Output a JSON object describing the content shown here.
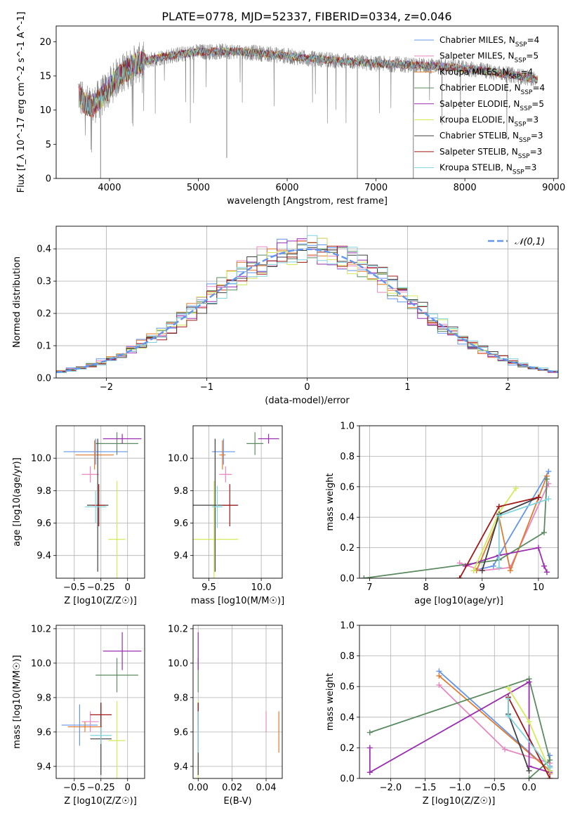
{
  "figure_title": "PLATE=0778, MJD=52337, FIBERID=0334, z=0.046",
  "models": [
    {
      "name": "Chabrier MILES",
      "n": "4",
      "color": "#6495ED"
    },
    {
      "name": "Salpeter MILES",
      "n": "5",
      "color": "#E887C0"
    },
    {
      "name": "Kroupa MILES",
      "n": "4",
      "color": "#E07B30"
    },
    {
      "name": "Chabrier ELODIE",
      "n": "4",
      "color": "#5B8A60"
    },
    {
      "name": "Salpeter ELODIE",
      "n": "5",
      "color": "#9A2DB0"
    },
    {
      "name": "Kroupa ELODIE",
      "n": "3",
      "color": "#D4EA5A"
    },
    {
      "name": "Chabrier STELIB",
      "n": "3",
      "color": "#404040"
    },
    {
      "name": "Salpeter STELIB",
      "n": "3",
      "color": "#A01818"
    },
    {
      "name": "Kroupa STELIB",
      "n": "3",
      "color": "#80D4DE"
    }
  ],
  "chart_data": [
    {
      "id": "spectrum",
      "type": "line",
      "xlabel": "wavelength [Angstrom, rest frame]",
      "ylabel": "Flux [f_λ 10^-17 erg cm^-2 s^-1 A^-1]",
      "xlim": [
        3400,
        9050
      ],
      "ylim": [
        0,
        22.3
      ],
      "xticks": [
        4000,
        5000,
        6000,
        7000,
        8000,
        9000
      ],
      "yticks": [
        0,
        5,
        10,
        15,
        20
      ],
      "legend": "top-right",
      "continuum": {
        "x": [
          3650,
          3700,
          3800,
          3950,
          4100,
          4300,
          4600,
          5000,
          5400,
          5800,
          6200,
          6600,
          7000,
          7400,
          7800,
          8200,
          8600,
          8800
        ],
        "y": [
          12.5,
          11.2,
          10.5,
          12.5,
          15.0,
          16.8,
          17.8,
          18.5,
          18.6,
          18.2,
          17.6,
          17.2,
          16.8,
          16.6,
          16.3,
          15.8,
          15.0,
          14.5
        ]
      },
      "dropouts": [
        {
          "x": 3900,
          "y": 0
        },
        {
          "x": 6790,
          "y": 0
        },
        {
          "x": 7420,
          "y": 0
        },
        {
          "x": 5320,
          "y": 3
        }
      ]
    },
    {
      "id": "residuals",
      "type": "line",
      "xlabel": "(data-model)/error",
      "ylabel": "Normed distribution",
      "xlim": [
        -2.5,
        2.5
      ],
      "ylim": [
        0,
        0.47
      ],
      "xticks": [
        -2,
        -1,
        0,
        1,
        2
      ],
      "yticks": [
        0.0,
        0.1,
        0.2,
        0.3,
        0.4
      ],
      "reference_curve": {
        "name": "𝒩(0,1)",
        "mu": 0,
        "sigma": 1,
        "style": "dashed",
        "color": "#6495ED"
      },
      "legend": "top-right"
    },
    {
      "id": "age-vs-Z",
      "type": "scatter",
      "xlabel": "Z [log10(Z/Z☉)]",
      "ylabel": "age  [log10(age/yr)]",
      "xlim": [
        -0.67,
        0.16
      ],
      "ylim": [
        9.26,
        10.2
      ],
      "xticks": [
        -0.5,
        -0.25,
        0.0
      ],
      "yticks": [
        9.4,
        9.6,
        9.8,
        10.0
      ],
      "points": [
        {
          "x": -0.3,
          "y": 10.04,
          "xerr": 0.3,
          "yerr": 0.08
        },
        {
          "x": -0.35,
          "y": 9.9,
          "xerr": 0.08,
          "yerr": 0.05
        },
        {
          "x": -0.31,
          "y": 10.02,
          "xerr": 0.18,
          "yerr": 0.09
        },
        {
          "x": -0.1,
          "y": 10.09,
          "xerr": 0.2,
          "yerr": 0.07
        },
        {
          "x": -0.05,
          "y": 10.12,
          "xerr": 0.18,
          "yerr": 0.03
        },
        {
          "x": -0.1,
          "y": 9.5,
          "xerr": 0.08,
          "yerr": 0.36
        },
        {
          "x": -0.28,
          "y": 9.71,
          "xerr": 0.1,
          "yerr": 0.41
        },
        {
          "x": -0.27,
          "y": 9.71,
          "xerr": 0.06,
          "yerr": 0.13
        },
        {
          "x": -0.3,
          "y": 9.7,
          "xerr": 0.1,
          "yerr": 0.1
        }
      ]
    },
    {
      "id": "age-vs-mass",
      "type": "scatter",
      "xlabel": "mass [log10(M/M☉)]",
      "ylabel": "",
      "xlim": [
        9.35,
        10.2
      ],
      "ylim": [
        9.26,
        10.2
      ],
      "xticks": [
        9.5,
        10.0
      ],
      "yticks": [
        9.4,
        9.6,
        9.8,
        10.0
      ],
      "points": [
        {
          "x": 9.64,
          "y": 10.04,
          "xerr": 0.11,
          "yerr": 0.08
        },
        {
          "x": 9.66,
          "y": 9.9,
          "xerr": 0.06,
          "yerr": 0.05
        },
        {
          "x": 9.63,
          "y": 10.02,
          "xerr": 0.03,
          "yerr": 0.09
        },
        {
          "x": 9.94,
          "y": 10.09,
          "xerr": 0.08,
          "yerr": 0.07
        },
        {
          "x": 10.07,
          "y": 10.12,
          "xerr": 0.1,
          "yerr": 0.03
        },
        {
          "x": 9.55,
          "y": 9.5,
          "xerr": 0.23,
          "yerr": 0.36
        },
        {
          "x": 9.56,
          "y": 9.71,
          "xerr": 0.22,
          "yerr": 0.41
        },
        {
          "x": 9.7,
          "y": 9.71,
          "xerr": 0.07,
          "yerr": 0.13
        },
        {
          "x": 9.58,
          "y": 9.7,
          "xerr": 0.05,
          "yerr": 0.13
        }
      ]
    },
    {
      "id": "weight-vs-age",
      "type": "line",
      "xlabel": "age  [log10(age/yr)]",
      "ylabel": "mass weight",
      "xlim": [
        6.82,
        10.35
      ],
      "ylim": [
        0,
        1.0
      ],
      "xticks": [
        7,
        8,
        9,
        10
      ],
      "yticks": [
        0.0,
        0.2,
        0.4,
        0.6,
        0.8,
        1.0
      ],
      "series": [
        {
          "x": [
            8.85,
            9.2,
            9.3,
            10.18
          ],
          "y": [
            0.05,
            0.08,
            0.15,
            0.7
          ]
        },
        {
          "x": [
            8.6,
            9.0,
            9.5,
            10.15,
            10.18
          ],
          "y": [
            0.1,
            0.05,
            0.07,
            0.6,
            0.62
          ]
        },
        {
          "x": [
            8.9,
            9.3,
            9.5,
            10.15
          ],
          "y": [
            0.05,
            0.4,
            0.05,
            0.67
          ]
        },
        {
          "x": [
            6.9,
            9.3,
            10.1,
            10.15
          ],
          "y": [
            0.0,
            0.12,
            0.3,
            0.65
          ]
        },
        {
          "x": [
            8.7,
            9.3,
            10.0,
            10.1,
            10.15
          ],
          "y": [
            0.08,
            0.15,
            0.2,
            0.08,
            0.04
          ]
        },
        {
          "x": [
            8.85,
            9.3,
            9.6
          ],
          "y": [
            0.05,
            0.43,
            0.59
          ]
        },
        {
          "x": [
            9.0,
            9.3,
            10.0
          ],
          "y": [
            0.05,
            0.42,
            0.53
          ]
        },
        {
          "x": [
            8.6,
            9.3,
            10.0
          ],
          "y": [
            0.0,
            0.47,
            0.53
          ]
        },
        {
          "x": [
            9.3,
            9.3,
            10.18
          ],
          "y": [
            0.07,
            0.41,
            0.52
          ]
        }
      ]
    },
    {
      "id": "mass-vs-Z",
      "type": "scatter",
      "xlabel": "Z [log10(Z/Z☉)]",
      "ylabel": "mass [log10(M/M☉)]",
      "xlim": [
        -0.67,
        0.16
      ],
      "ylim": [
        9.33,
        10.22
      ],
      "xticks": [
        -0.5,
        -0.25,
        0.0
      ],
      "yticks": [
        9.4,
        9.6,
        9.8,
        10.0,
        10.2
      ],
      "points": [
        {
          "x": -0.45,
          "y": 9.64,
          "xerr": 0.17,
          "yerr": 0.12
        },
        {
          "x": -0.35,
          "y": 9.66,
          "xerr": 0.08,
          "yerr": 0.06
        },
        {
          "x": -0.4,
          "y": 9.63,
          "xerr": 0.16,
          "yerr": 0.03
        },
        {
          "x": -0.1,
          "y": 9.93,
          "xerr": 0.2,
          "yerr": 0.1
        },
        {
          "x": -0.05,
          "y": 10.07,
          "xerr": 0.18,
          "yerr": 0.11
        },
        {
          "x": -0.1,
          "y": 9.55,
          "xerr": 0.08,
          "yerr": 0.23
        },
        {
          "x": -0.25,
          "y": 9.56,
          "xerr": 0.1,
          "yerr": 0.21
        },
        {
          "x": -0.25,
          "y": 9.7,
          "xerr": 0.1,
          "yerr": 0.07
        },
        {
          "x": -0.25,
          "y": 9.58,
          "xerr": 0.1,
          "yerr": 0.05
        }
      ]
    },
    {
      "id": "mass-vs-ebv",
      "type": "scatter",
      "xlabel": "E(B-V)",
      "ylabel": "",
      "xlim": [
        -0.003,
        0.0495
      ],
      "ylim": [
        9.33,
        10.22
      ],
      "xticks": [
        0.0,
        0.02,
        0.04
      ],
      "yticks": [
        9.4,
        9.6,
        9.8,
        10.0,
        10.2
      ],
      "points": [
        {
          "x": 0.0,
          "y": 9.64,
          "yerr": 0.12
        },
        {
          "x": 0.04,
          "y": 9.66,
          "yerr": 0.06
        },
        {
          "x": 0.0475,
          "y": 9.6,
          "yerr": 0.12
        },
        {
          "x": 0.0,
          "y": 9.93,
          "yerr": 0.1
        },
        {
          "x": 0.0,
          "y": 10.07,
          "yerr": 0.11
        },
        {
          "x": 0.0,
          "y": 9.55,
          "yerr": 0.23
        },
        {
          "x": 0.0,
          "y": 9.56,
          "yerr": 0.21
        },
        {
          "x": 0.0,
          "y": 9.7,
          "yerr": 0.07
        },
        {
          "x": 0.0,
          "y": 9.6,
          "yerr": 0.12
        }
      ]
    },
    {
      "id": "weight-vs-Z",
      "type": "line",
      "xlabel": "Z [log10(Z/Z☉)]",
      "ylabel": "mass weight",
      "xlim": [
        -2.45,
        0.42
      ],
      "ylim": [
        0,
        1.0
      ],
      "xticks": [
        -2.0,
        -1.5,
        -1.0,
        -0.5,
        0.0
      ],
      "yticks": [
        0.0,
        0.2,
        0.4,
        0.6,
        0.8,
        1.0
      ],
      "series": [
        {
          "x": [
            -1.3,
            0.3,
            0.3,
            0.3
          ],
          "y": [
            0.7,
            0.05,
            0.08,
            0.15
          ]
        },
        {
          "x": [
            -1.3,
            -0.35,
            0.3,
            0.3
          ],
          "y": [
            0.61,
            0.19,
            0.1,
            0.07
          ]
        },
        {
          "x": [
            -1.3,
            0.3,
            0.3
          ],
          "y": [
            0.67,
            0.05,
            0.03
          ]
        },
        {
          "x": [
            -2.3,
            0.0,
            0.3,
            0.0
          ],
          "y": [
            0.3,
            0.65,
            0.12,
            0.0
          ]
        },
        {
          "x": [
            -2.3,
            -2.3,
            0.0,
            0.0,
            0.3
          ],
          "y": [
            0.2,
            0.04,
            0.63,
            0.08,
            0.04
          ]
        },
        {
          "x": [
            -0.3,
            0.0,
            0.3
          ],
          "y": [
            0.59,
            0.37,
            0.05
          ]
        },
        {
          "x": [
            -0.3,
            -0.3,
            0.0
          ],
          "y": [
            0.53,
            0.42,
            0.05
          ]
        },
        {
          "x": [
            -0.3,
            0.3
          ],
          "y": [
            0.53,
            0.0
          ]
        },
        {
          "x": [
            -0.3,
            -0.3,
            0.3
          ],
          "y": [
            0.52,
            0.41,
            0.07
          ]
        }
      ]
    }
  ]
}
